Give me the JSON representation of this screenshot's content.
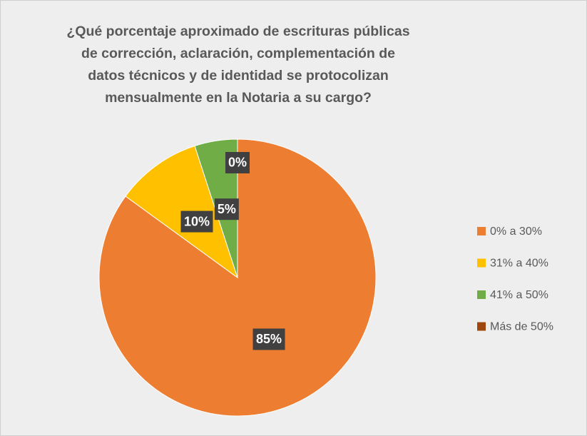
{
  "chart_data": {
    "type": "pie",
    "title": "¿Qué porcentaje aproximado de escrituras públicas de corrección, aclaración, complementación de datos técnicos y de identidad se protocolizan mensualmente en la Notaria a su cargo?",
    "categories": [
      "0% a 30%",
      "31% a 40%",
      "41% a 50%",
      "Más de 50%"
    ],
    "values": [
      85,
      10,
      5,
      0
    ],
    "value_labels": [
      "85%",
      "10%",
      "5%",
      "0%"
    ],
    "colors": [
      "#ED7D31",
      "#FFC000",
      "#70AD47",
      "#9E480E"
    ],
    "legend": "right"
  }
}
